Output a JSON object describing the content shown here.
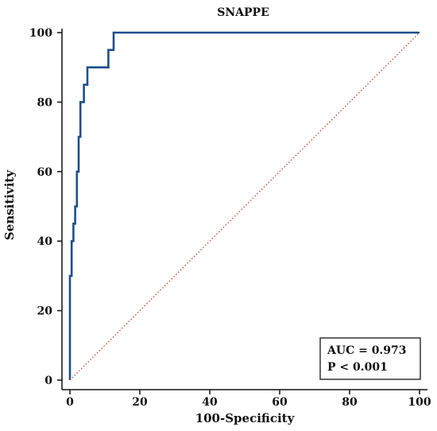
{
  "chart_data": {
    "type": "line",
    "title": "SNAPPE",
    "xlabel": "100-Specificity",
    "ylabel": "Sensitivity",
    "xlim": [
      0,
      100
    ],
    "ylim": [
      0,
      100
    ],
    "x_ticks": [
      0,
      20,
      40,
      60,
      80,
      100
    ],
    "y_ticks": [
      0,
      20,
      40,
      60,
      80,
      100
    ],
    "x_tick_labels": [
      "0",
      "20",
      "40",
      "60",
      "80",
      "100"
    ],
    "y_tick_labels": [
      "0",
      "20",
      "40",
      "60",
      "80",
      "100"
    ],
    "grid": false,
    "series": [
      {
        "style": "solid",
        "color": "#1f4e8c",
        "x": [
          0,
          0,
          0.5,
          0.5,
          1,
          1,
          1.5,
          1.5,
          2,
          2,
          2.5,
          2.5,
          3,
          3,
          4,
          4,
          5,
          5,
          11,
          11,
          12.5,
          12.5,
          100
        ],
        "y": [
          0,
          30,
          30,
          40,
          40,
          45,
          45,
          50,
          50,
          60,
          60,
          70,
          70,
          80,
          80,
          85,
          85,
          90,
          90,
          95,
          95,
          100,
          100
        ]
      },
      {
        "style": "dotted",
        "color": "#c0392b",
        "x": [
          0,
          100
        ],
        "y": [
          0,
          100
        ]
      }
    ],
    "annotation": {
      "lines": [
        "AUC = 0.973",
        "P < 0.001"
      ],
      "placement": "bottom-right"
    }
  }
}
